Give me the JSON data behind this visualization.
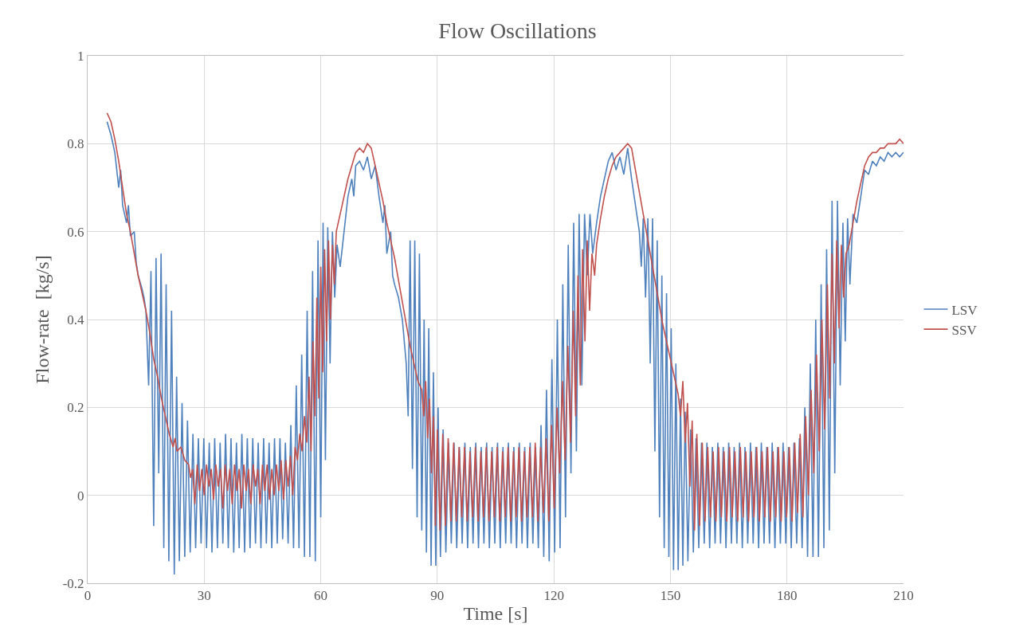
{
  "chart_data": {
    "type": "line",
    "title": "Flow Oscillations",
    "xlabel": "Time [s]",
    "ylabel": "Flow-rate  [kg/s]",
    "xlim": [
      0,
      210
    ],
    "xticks": [
      0,
      30,
      60,
      90,
      120,
      150,
      180,
      210
    ],
    "ylim": [
      -0.2,
      1
    ],
    "yticks": [
      -0.2,
      0,
      0.2,
      0.4,
      0.6,
      0.8,
      1
    ],
    "grid": true,
    "legend": "right",
    "series": [
      {
        "name": "LSV",
        "color": "#4f81bd",
        "x": [
          5,
          6,
          7,
          8,
          8.5,
          9,
          10,
          10.5,
          11,
          12,
          12.5,
          13,
          14,
          14.5,
          15,
          15.7,
          16.3,
          17,
          17.6,
          18.3,
          18.9,
          19.6,
          20.2,
          20.9,
          21.6,
          22.3,
          22.9,
          23.6,
          24.3,
          25,
          25.7,
          26.4,
          27.1,
          27.8,
          28.5,
          29.2,
          29.9,
          30.6,
          31.3,
          32.0,
          32.7,
          33.4,
          34.1,
          34.8,
          35.5,
          36.2,
          36.9,
          37.6,
          38.3,
          39.0,
          39.7,
          40.4,
          41.1,
          41.8,
          42.5,
          43.2,
          43.9,
          44.6,
          45.3,
          46.0,
          46.7,
          47.4,
          48.1,
          48.8,
          49.5,
          50.2,
          50.9,
          51.6,
          52.3,
          53.0,
          53.7,
          54.4,
          55.1,
          55.8,
          56.5,
          57.2,
          57.9,
          58.6,
          59.3,
          60.0,
          60.6,
          61.2,
          61.8,
          62.4,
          63.0,
          63.6,
          64.2,
          65,
          66,
          67,
          68,
          68.5,
          69,
          70,
          71,
          72,
          73,
          74,
          75,
          76,
          76.5,
          77,
          78,
          78.5,
          79,
          80,
          81,
          82,
          82.5,
          83,
          83.6,
          84.2,
          84.8,
          85.4,
          86,
          86.6,
          87.2,
          87.8,
          88.4,
          89,
          89.6,
          90.2,
          90.8,
          91.5,
          92.2,
          92.9,
          93.6,
          94.3,
          95,
          95.7,
          96.4,
          97.1,
          97.8,
          98.5,
          99.2,
          99.9,
          100.6,
          101.3,
          102,
          102.7,
          103.4,
          104.1,
          104.8,
          105.5,
          106.2,
          106.9,
          107.6,
          108.3,
          109,
          109.7,
          110.4,
          111.1,
          111.8,
          112.5,
          113.2,
          113.9,
          114.6,
          115.3,
          116,
          116.7,
          117.4,
          118.1,
          118.8,
          119.5,
          120.2,
          120.9,
          121.6,
          122.3,
          123,
          123.7,
          124.4,
          125.1,
          125.8,
          126.5,
          127.2,
          127.9,
          128.6,
          129.3,
          130,
          131,
          132,
          133,
          134,
          135,
          136,
          137,
          138,
          139,
          140,
          141,
          142,
          142.5,
          143,
          143.6,
          144.2,
          144.8,
          145.4,
          146,
          146.6,
          147.2,
          147.8,
          148.4,
          149,
          149.6,
          150.2,
          150.8,
          151.4,
          152,
          152.6,
          153.2,
          153.8,
          154.5,
          155.2,
          155.9,
          156.6,
          157.3,
          158,
          158.7,
          159.4,
          160.1,
          160.8,
          161.5,
          162.2,
          162.9,
          163.6,
          164.3,
          165,
          165.7,
          166.4,
          167.1,
          167.8,
          168.5,
          169.2,
          169.9,
          170.6,
          171.3,
          172,
          172.7,
          173.4,
          174.1,
          174.8,
          175.5,
          176.2,
          176.9,
          177.6,
          178.3,
          179,
          179.7,
          180.4,
          181.1,
          181.8,
          182.5,
          183.2,
          183.9,
          184.6,
          185.3,
          186,
          186.7,
          187.4,
          188.1,
          188.8,
          189.5,
          190.2,
          190.9,
          191.6,
          192.3,
          193,
          193.7,
          194.4,
          195,
          195.6,
          196.2,
          197,
          198,
          199,
          200,
          201,
          202,
          203,
          204,
          205,
          206,
          207,
          208,
          209,
          210
        ],
        "values": [
          0.85,
          0.82,
          0.78,
          0.7,
          0.74,
          0.66,
          0.62,
          0.66,
          0.59,
          0.6,
          0.53,
          0.5,
          0.47,
          0.45,
          0.42,
          0.25,
          0.51,
          -0.07,
          0.54,
          0.05,
          0.55,
          -0.12,
          0.48,
          -0.15,
          0.42,
          -0.18,
          0.27,
          -0.15,
          0.21,
          -0.14,
          0.17,
          -0.13,
          0.14,
          -0.12,
          0.13,
          -0.11,
          0.13,
          -0.12,
          0.12,
          -0.13,
          0.13,
          -0.12,
          0.12,
          -0.11,
          0.14,
          -0.12,
          0.13,
          -0.13,
          0.12,
          -0.12,
          0.14,
          -0.13,
          0.13,
          -0.12,
          0.13,
          -0.11,
          0.12,
          -0.12,
          0.13,
          -0.11,
          0.12,
          -0.12,
          0.13,
          -0.11,
          0.13,
          -0.1,
          0.12,
          -0.11,
          0.16,
          -0.12,
          0.25,
          -0.12,
          0.32,
          -0.14,
          0.42,
          -0.14,
          0.51,
          -0.15,
          0.58,
          -0.05,
          0.62,
          0.08,
          0.61,
          0.3,
          0.6,
          0.45,
          0.57,
          0.52,
          0.6,
          0.68,
          0.72,
          0.68,
          0.75,
          0.76,
          0.74,
          0.77,
          0.72,
          0.75,
          0.68,
          0.62,
          0.66,
          0.55,
          0.6,
          0.5,
          0.48,
          0.45,
          0.4,
          0.3,
          0.18,
          0.58,
          0.06,
          0.58,
          -0.05,
          0.55,
          -0.08,
          0.4,
          -0.13,
          0.38,
          -0.16,
          0.28,
          -0.16,
          0.2,
          -0.14,
          0.15,
          -0.13,
          0.12,
          -0.11,
          0.12,
          -0.12,
          0.11,
          -0.11,
          0.12,
          -0.12,
          0.11,
          -0.11,
          0.12,
          -0.12,
          0.11,
          -0.11,
          0.12,
          -0.12,
          0.11,
          -0.11,
          0.12,
          -0.12,
          0.11,
          -0.11,
          0.12,
          -0.11,
          0.11,
          -0.12,
          0.12,
          -0.11,
          0.11,
          -0.12,
          0.12,
          -0.11,
          0.11,
          -0.12,
          0.16,
          -0.14,
          0.24,
          -0.15,
          0.31,
          -0.13,
          0.4,
          -0.12,
          0.48,
          -0.05,
          0.57,
          0.05,
          0.62,
          0.1,
          0.64,
          0.25,
          0.64,
          0.5,
          0.64,
          0.55,
          0.62,
          0.68,
          0.72,
          0.76,
          0.78,
          0.74,
          0.77,
          0.73,
          0.79,
          0.72,
          0.66,
          0.6,
          0.52,
          0.63,
          0.45,
          0.63,
          0.3,
          0.63,
          0.1,
          0.58,
          -0.05,
          0.5,
          -0.12,
          0.46,
          -0.14,
          0.38,
          -0.17,
          0.3,
          -0.17,
          0.22,
          -0.16,
          0.19,
          -0.15,
          0.15,
          -0.13,
          0.13,
          -0.12,
          0.12,
          -0.11,
          0.12,
          -0.12,
          0.11,
          -0.11,
          0.12,
          -0.11,
          0.11,
          -0.12,
          0.12,
          -0.11,
          0.11,
          -0.11,
          0.12,
          -0.12,
          0.11,
          -0.11,
          0.12,
          -0.11,
          0.11,
          -0.12,
          0.12,
          -0.11,
          0.11,
          -0.11,
          0.12,
          -0.12,
          0.11,
          -0.11,
          0.12,
          -0.11,
          0.11,
          -0.12,
          0.12,
          -0.11,
          0.13,
          -0.12,
          0.2,
          -0.14,
          0.3,
          -0.14,
          0.4,
          -0.14,
          0.48,
          -0.12,
          0.56,
          -0.08,
          0.67,
          0.05,
          0.67,
          0.25,
          0.62,
          0.35,
          0.63,
          0.48,
          0.64,
          0.62,
          0.68,
          0.74,
          0.73,
          0.76,
          0.75,
          0.77,
          0.76,
          0.78,
          0.77,
          0.78,
          0.77,
          0.78
        ]
      },
      {
        "name": "SSV",
        "color": "#c0504d",
        "x": [
          5,
          6,
          7,
          8,
          9,
          10,
          11,
          12,
          13,
          14,
          15,
          16,
          17,
          18,
          19,
          20,
          21,
          22,
          22.5,
          23,
          24,
          25,
          26,
          26.5,
          27,
          27.6,
          28.2,
          28.8,
          29.4,
          30,
          30.6,
          31.2,
          31.8,
          32.4,
          33,
          33.6,
          34.2,
          34.8,
          35.4,
          36,
          36.6,
          37.2,
          37.8,
          38.4,
          39,
          39.6,
          40.2,
          40.8,
          41.4,
          42,
          42.6,
          43.2,
          43.8,
          44.4,
          45,
          45.6,
          46.2,
          46.8,
          47.4,
          48,
          48.6,
          49.2,
          49.8,
          50.4,
          51,
          51.6,
          52.2,
          52.8,
          53.4,
          54,
          54.6,
          55.2,
          55.8,
          56.4,
          57,
          57.5,
          58,
          58.5,
          59,
          59.5,
          60,
          60.5,
          61,
          61.5,
          62,
          62.5,
          63,
          63.5,
          64,
          65,
          66,
          67,
          68,
          69,
          70,
          71,
          72,
          73,
          74,
          75,
          76,
          77,
          78,
          79,
          80,
          81,
          82,
          83,
          84,
          85,
          86,
          86.5,
          87,
          87.5,
          88,
          88.5,
          89,
          89.5,
          90,
          90.7,
          91.4,
          92.1,
          92.8,
          93.5,
          94.2,
          94.9,
          95.6,
          96.3,
          97,
          97.7,
          98.4,
          99.1,
          99.8,
          100.5,
          101.2,
          101.9,
          102.6,
          103.3,
          104,
          104.7,
          105.4,
          106.1,
          106.8,
          107.5,
          108.2,
          108.9,
          109.6,
          110.3,
          111,
          111.7,
          112.4,
          113.1,
          113.8,
          114.5,
          115.2,
          115.9,
          116.6,
          117.3,
          118,
          118.7,
          119.4,
          120.1,
          120.8,
          121.5,
          122.2,
          122.9,
          123.6,
          124.3,
          125,
          125.6,
          126.2,
          126.8,
          127.4,
          128,
          128.6,
          129.2,
          129.8,
          130.5,
          131,
          132,
          133,
          134,
          135,
          136,
          137,
          138,
          139,
          140,
          141,
          142,
          143,
          144,
          145,
          146,
          147,
          148,
          149,
          150,
          151,
          152,
          152.6,
          153.2,
          153.8,
          154.4,
          155,
          155.6,
          156.2,
          156.8,
          157.5,
          158.2,
          158.9,
          159.6,
          160.3,
          161,
          161.7,
          162.4,
          163.1,
          163.8,
          164.5,
          165.2,
          165.9,
          166.6,
          167.3,
          168,
          168.7,
          169.4,
          170.1,
          170.8,
          171.5,
          172.2,
          172.9,
          173.6,
          174.3,
          175,
          175.7,
          176.4,
          177.1,
          177.8,
          178.5,
          179.2,
          179.9,
          180.6,
          181.3,
          182,
          182.7,
          183.4,
          184.1,
          184.8,
          185.5,
          186.2,
          186.9,
          187.6,
          188.3,
          189,
          189.7,
          190.4,
          191,
          191.6,
          192.2,
          192.8,
          193.4,
          194,
          194.6,
          195.2,
          196,
          197,
          198,
          199,
          200,
          201,
          202,
          203,
          204,
          205,
          206,
          207,
          208,
          209,
          210
        ],
        "values": [
          0.87,
          0.85,
          0.81,
          0.76,
          0.7,
          0.64,
          0.6,
          0.55,
          0.5,
          0.46,
          0.42,
          0.37,
          0.31,
          0.27,
          0.22,
          0.18,
          0.14,
          0.11,
          0.13,
          0.1,
          0.11,
          0.08,
          0.07,
          0.04,
          0.06,
          -0.02,
          0.07,
          0.01,
          0.06,
          0.0,
          0.07,
          0.02,
          0.06,
          -0.01,
          0.07,
          0.02,
          0.06,
          -0.03,
          0.07,
          0.01,
          0.06,
          -0.02,
          0.07,
          0.01,
          0.06,
          -0.03,
          0.07,
          0.01,
          0.06,
          -0.02,
          0.07,
          0.02,
          0.06,
          -0.02,
          0.07,
          0.01,
          0.07,
          -0.01,
          0.06,
          0.0,
          0.07,
          0.01,
          0.08,
          -0.01,
          0.08,
          0.02,
          0.09,
          0.0,
          0.11,
          0.08,
          0.14,
          0.1,
          0.18,
          0.12,
          0.27,
          0.1,
          0.35,
          0.18,
          0.45,
          0.22,
          0.52,
          0.28,
          0.56,
          0.35,
          0.58,
          0.4,
          0.57,
          0.48,
          0.6,
          0.64,
          0.68,
          0.72,
          0.75,
          0.78,
          0.79,
          0.78,
          0.8,
          0.79,
          0.75,
          0.71,
          0.67,
          0.62,
          0.58,
          0.54,
          0.49,
          0.44,
          0.39,
          0.34,
          0.3,
          0.26,
          0.24,
          0.18,
          0.26,
          0.13,
          0.22,
          0.05,
          0.18,
          -0.07,
          0.15,
          -0.08,
          0.14,
          -0.07,
          0.13,
          -0.06,
          0.12,
          -0.06,
          0.11,
          -0.05,
          0.11,
          -0.06,
          0.1,
          -0.05,
          0.11,
          -0.06,
          0.1,
          -0.05,
          0.11,
          -0.06,
          0.1,
          -0.05,
          0.11,
          -0.06,
          0.1,
          -0.05,
          0.11,
          -0.06,
          0.1,
          -0.05,
          0.11,
          -0.06,
          0.1,
          -0.05,
          0.11,
          -0.05,
          0.12,
          -0.06,
          0.11,
          -0.04,
          0.13,
          -0.06,
          0.16,
          -0.03,
          0.2,
          0.05,
          0.26,
          0.08,
          0.34,
          0.12,
          0.42,
          0.18,
          0.5,
          0.25,
          0.56,
          0.35,
          0.58,
          0.42,
          0.55,
          0.5,
          0.57,
          0.63,
          0.68,
          0.72,
          0.75,
          0.77,
          0.78,
          0.79,
          0.8,
          0.79,
          0.74,
          0.69,
          0.64,
          0.59,
          0.54,
          0.49,
          0.44,
          0.39,
          0.35,
          0.31,
          0.27,
          0.23,
          0.18,
          0.26,
          0.12,
          0.21,
          0.02,
          0.17,
          -0.08,
          0.14,
          -0.07,
          0.12,
          -0.06,
          0.11,
          -0.05,
          0.1,
          -0.06,
          0.11,
          -0.05,
          0.1,
          -0.06,
          0.11,
          -0.05,
          0.1,
          -0.06,
          0.11,
          -0.05,
          0.1,
          -0.06,
          0.1,
          -0.05,
          0.11,
          -0.06,
          0.1,
          -0.05,
          0.11,
          -0.06,
          0.1,
          -0.05,
          0.11,
          -0.06,
          0.1,
          -0.05,
          0.11,
          -0.06,
          0.12,
          -0.04,
          0.14,
          -0.05,
          0.18,
          0.0,
          0.24,
          0.05,
          0.32,
          0.1,
          0.4,
          0.15,
          0.48,
          0.22,
          0.55,
          0.3,
          0.58,
          0.38,
          0.57,
          0.45,
          0.55,
          0.57,
          0.62,
          0.67,
          0.71,
          0.75,
          0.77,
          0.78,
          0.78,
          0.79,
          0.79,
          0.8,
          0.8,
          0.8,
          0.81,
          0.8
        ]
      }
    ]
  }
}
